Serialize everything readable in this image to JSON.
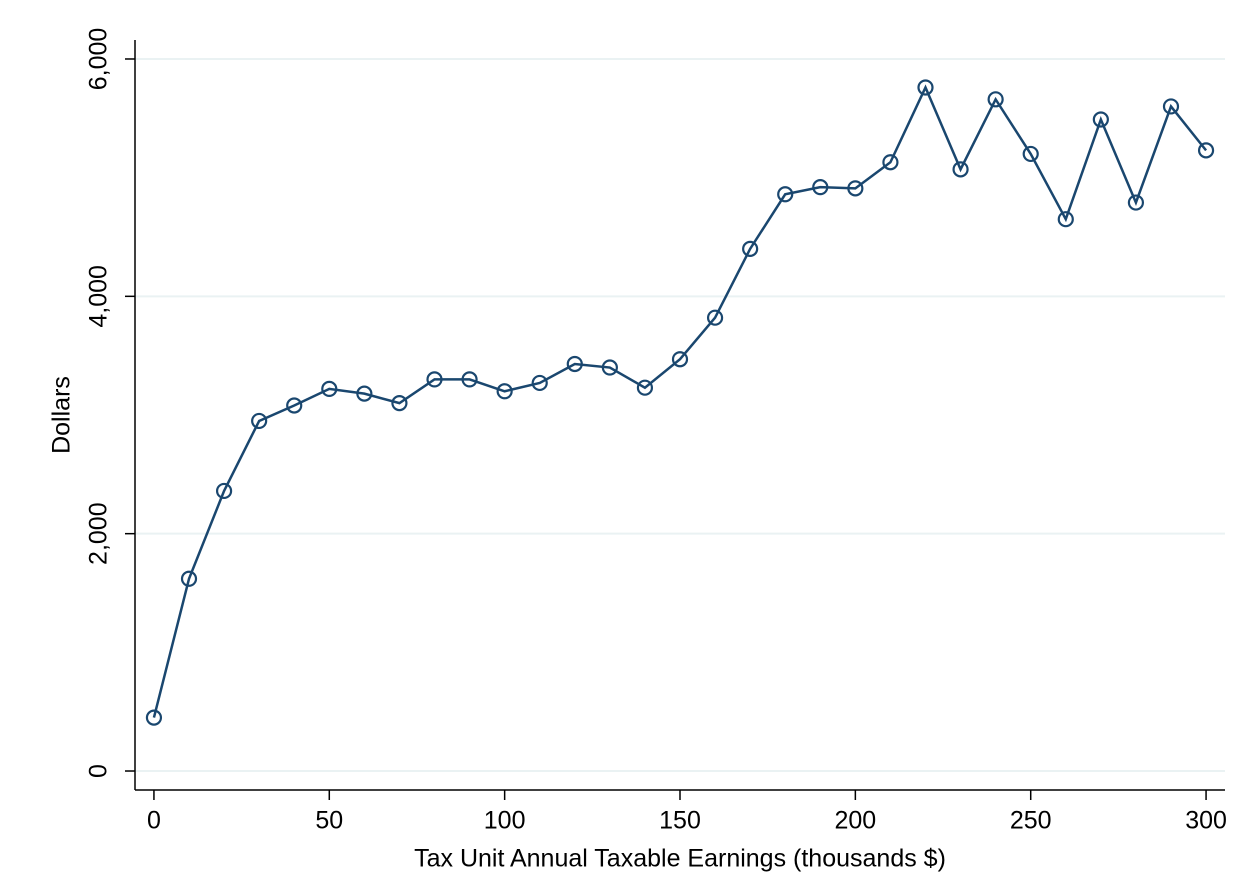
{
  "chart_data": {
    "type": "line",
    "xlabel": "Tax Unit Annual Taxable Earnings (thousands $)",
    "ylabel": "Dollars",
    "x": [
      0,
      10,
      20,
      30,
      40,
      50,
      60,
      70,
      80,
      90,
      100,
      110,
      120,
      130,
      140,
      150,
      160,
      170,
      180,
      190,
      200,
      210,
      220,
      230,
      240,
      250,
      260,
      270,
      280,
      290,
      300
    ],
    "series": [
      {
        "color": "#1a476f",
        "values": [
          450,
          1620,
          2360,
          2950,
          3080,
          3220,
          3180,
          3100,
          3300,
          3300,
          3200,
          3270,
          3430,
          3400,
          3230,
          3470,
          3820,
          4400,
          4860,
          4920,
          4910,
          5130,
          5760,
          5070,
          5660,
          5200,
          4650,
          5490,
          4790,
          5600,
          5230
        ]
      }
    ],
    "xlim": [
      -5.4,
      305.4
    ],
    "ylim": [
      -160,
      6160
    ],
    "xticks": [
      0,
      50,
      100,
      150,
      200,
      250,
      300
    ],
    "yticks": [
      0,
      {
        "value": 2000,
        "label": "2,000"
      },
      {
        "value": 4000,
        "label": "4,000"
      },
      {
        "value": 6000,
        "label": "6,000"
      }
    ],
    "grid": true
  }
}
